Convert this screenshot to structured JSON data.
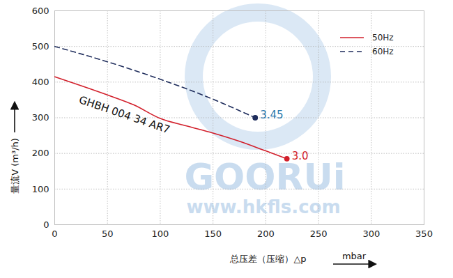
{
  "chart_data": {
    "type": "line",
    "x_label": "总压差（压缩）△p",
    "x_unit": "mbar",
    "y_label": "量流V (m³/h)",
    "xlim": [
      0,
      350
    ],
    "xticks": [
      0,
      50,
      100,
      150,
      200,
      250,
      300,
      350
    ],
    "ylim": [
      0,
      600
    ],
    "yticks": [
      0,
      100,
      200,
      300,
      400,
      500,
      600
    ],
    "grid": true,
    "legend": "top-right",
    "series": [
      {
        "name": "50Hz",
        "color": "#d21f2b",
        "line_style": "solid",
        "marker": "dot",
        "x": [
          0,
          25,
          50,
          75,
          100,
          125,
          150,
          175,
          200,
          220
        ],
        "values": [
          415,
          390,
          364,
          336,
          298,
          277,
          257,
          234,
          207,
          185
        ]
      },
      {
        "name": "60Hz",
        "color": "#1f2d5c",
        "line_style": "dashed",
        "marker": "dot",
        "x": [
          0,
          50,
          100,
          150,
          190
        ],
        "values": [
          500,
          457,
          408,
          352,
          300
        ]
      }
    ],
    "annotations": [
      {
        "text": "3.0",
        "x": 220,
        "y": 185,
        "color": "#d21f2b"
      },
      {
        "text": "3.45",
        "x": 190,
        "y": 300,
        "color": "#2a78ad"
      }
    ],
    "curve_label": {
      "text": "GHBH 004 34 AR7",
      "x": 66,
      "y": 308
    },
    "watermark": [
      "GOORUi",
      "www.hkfls.com"
    ]
  }
}
